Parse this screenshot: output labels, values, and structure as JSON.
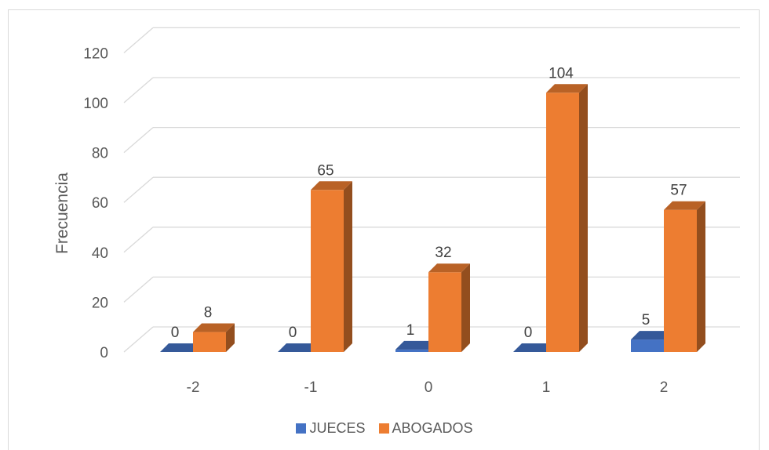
{
  "chart_data": {
    "type": "bar",
    "categories": [
      "-2",
      "-1",
      "0",
      "1",
      "2"
    ],
    "series": [
      {
        "name": "JUECES",
        "values": [
          0,
          0,
          1,
          0,
          5
        ],
        "color": "#4472C4"
      },
      {
        "name": "ABOGADOS",
        "values": [
          8,
          65,
          32,
          104,
          57
        ],
        "color": "#ED7D31"
      }
    ],
    "xlabel": "",
    "ylabel": "Frecuencia",
    "ylim": [
      0,
      120
    ],
    "yticks": [
      0,
      20,
      40,
      60,
      80,
      100,
      120
    ],
    "grid": true,
    "legend": "bottom",
    "style": "3d-clustered-column"
  }
}
